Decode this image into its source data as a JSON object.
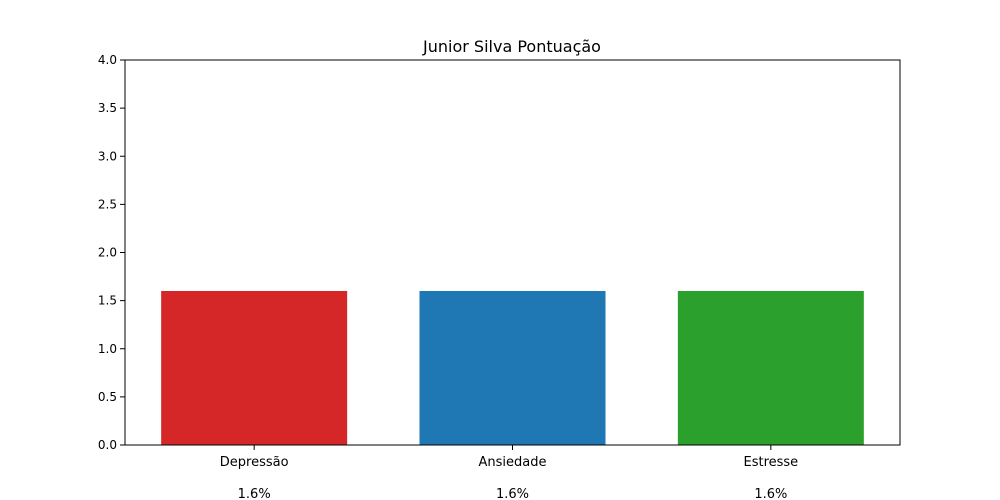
{
  "chart_data": {
    "type": "bar",
    "title": "Junior Silva Pontuação",
    "xlabel": "",
    "ylabel": "",
    "categories": [
      "Depressão",
      "Ansiedade",
      "Estresse"
    ],
    "values": [
      1.6,
      1.6,
      1.6
    ],
    "value_labels": [
      "1.6%",
      "1.6%",
      "1.6%"
    ],
    "colors": [
      "#d62728",
      "#1f77b4",
      "#2ca02c"
    ],
    "ylim": [
      0,
      4.0
    ],
    "yticks": [
      "0.0",
      "0.5",
      "1.0",
      "1.5",
      "2.0",
      "2.5",
      "3.0",
      "3.5",
      "4.0"
    ],
    "grid": false,
    "legend": "none"
  }
}
